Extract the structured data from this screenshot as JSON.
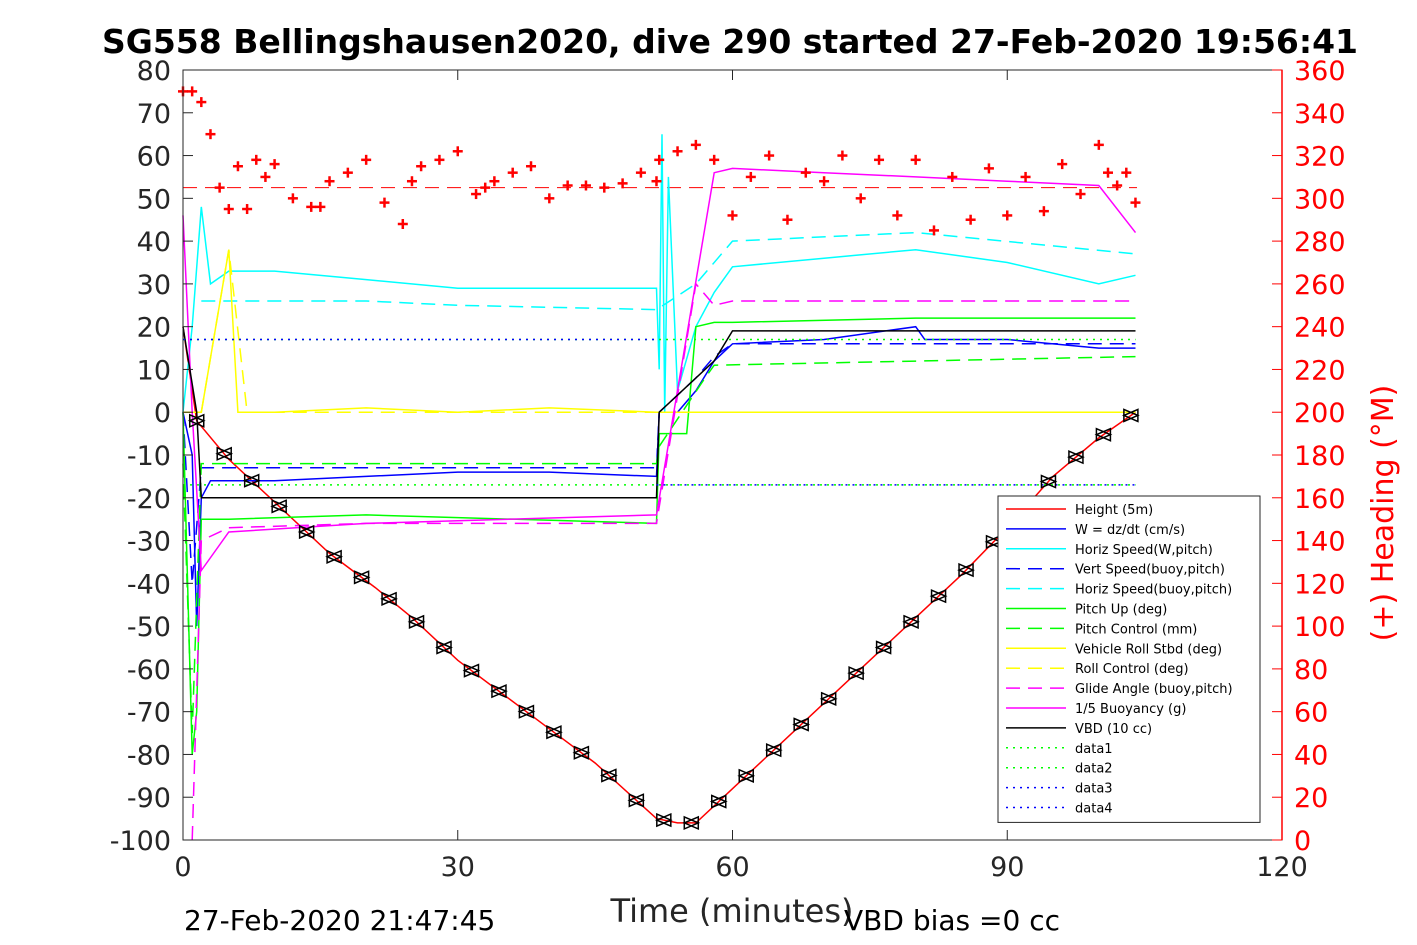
{
  "chart_data": {
    "type": "line",
    "title": "SG558 Bellingshausen2020, dive 290 started 27-Feb-2020 19:56:41",
    "xlabel": "Time (minutes)",
    "ylabel_left": "",
    "ylabel_right": "(+) Heading (°M)",
    "xlim": [
      0,
      120
    ],
    "ylim_left": [
      -100,
      80
    ],
    "ylim_right": [
      0,
      360
    ],
    "x_ticks": [
      "0",
      "30",
      "60",
      "90",
      "120"
    ],
    "y_ticks_left": [
      "80",
      "70",
      "60",
      "50",
      "40",
      "30",
      "20",
      "10",
      "0",
      "-10",
      "-20",
      "-30",
      "-40",
      "-50",
      "-60",
      "-70",
      "-80",
      "-90",
      "-100"
    ],
    "y_ticks_right": [
      "360",
      "340",
      "320",
      "300",
      "280",
      "260",
      "240",
      "220",
      "200",
      "180",
      "160",
      "140",
      "120",
      "100",
      "80",
      "60",
      "40",
      "20",
      "0"
    ],
    "footer_left": "27-Feb-2020 21:47:45",
    "footer_right": "VBD bias =0 cc",
    "grid": false,
    "legend_position": "bottom-right",
    "legend": [
      {
        "label": "Height (5m)",
        "color": "#ff0000",
        "style": "solid"
      },
      {
        "label": "W = dz/dt (cm/s)",
        "color": "#0000ff",
        "style": "solid"
      },
      {
        "label": "Horiz Speed(W,pitch)",
        "color": "#00ffff",
        "style": "solid"
      },
      {
        "label": "Vert Speed(buoy,pitch)",
        "color": "#0000ff",
        "style": "dashed"
      },
      {
        "label": "Horiz Speed(buoy,pitch)",
        "color": "#00ffff",
        "style": "dashed"
      },
      {
        "label": "Pitch Up (deg)",
        "color": "#00ff00",
        "style": "solid"
      },
      {
        "label": "Pitch Control (mm)",
        "color": "#00ff00",
        "style": "dashed"
      },
      {
        "label": "Vehicle Roll Stbd (deg)",
        "color": "#ffff00",
        "style": "solid"
      },
      {
        "label": "Roll Control (deg)",
        "color": "#ffff00",
        "style": "dashed"
      },
      {
        "label": "Glide Angle (buoy,pitch)",
        "color": "#ff00ff",
        "style": "dashed"
      },
      {
        "label": "1/5 Buoyancy (g)",
        "color": "#ff00ff",
        "style": "solid"
      },
      {
        "label": "VBD (10 cc)",
        "color": "#000000",
        "style": "solid"
      },
      {
        "label": "data1",
        "color": "#00ff00",
        "style": "dotted"
      },
      {
        "label": "data2",
        "color": "#00ff00",
        "style": "dotted"
      },
      {
        "label": "data3",
        "color": "#0000ff",
        "style": "dotted"
      },
      {
        "label": "data4",
        "color": "#0000ff",
        "style": "dotted"
      }
    ],
    "series": [
      {
        "name": "Height (5m)",
        "color": "#ff0000",
        "style": "solid",
        "x": [
          0,
          1.5,
          5,
          10,
          16,
          21,
          25,
          30,
          35,
          40,
          45,
          51.7,
          54,
          56,
          58,
          62,
          66,
          70,
          75,
          80,
          85,
          90,
          95,
          100,
          104
        ],
        "y": [
          20,
          -2,
          -11,
          -21,
          -33,
          -41,
          -48,
          -58,
          -66,
          -74,
          -82,
          -95,
          -96,
          -96,
          -92,
          -84,
          -76,
          -68,
          -58,
          -48,
          -38,
          -27,
          -15,
          -6,
          0
        ]
      },
      {
        "name": "W = dz/dt (cm/s)",
        "color": "#0000ff",
        "style": "solid",
        "x": [
          0,
          1,
          1.5,
          2,
          3,
          6,
          10,
          20,
          30,
          40,
          51.7,
          52,
          54,
          56,
          58,
          60,
          70,
          80,
          81,
          90,
          100,
          104
        ],
        "y": [
          0,
          -10,
          -50,
          -20,
          -16,
          -16,
          -16,
          -15,
          -14,
          -14,
          -15,
          0,
          0,
          5,
          12,
          16,
          17,
          20,
          17,
          17,
          15,
          15
        ]
      },
      {
        "name": "Horiz Speed(W,pitch)",
        "color": "#00ffff",
        "style": "solid",
        "x": [
          0,
          1,
          2,
          3,
          5,
          10,
          20,
          30,
          40,
          51.7,
          52,
          52.3,
          52.6,
          53,
          54,
          56,
          58,
          60,
          70,
          80,
          90,
          100,
          104
        ],
        "y": [
          0,
          20,
          48,
          30,
          33,
          33,
          31,
          29,
          29,
          29,
          10,
          65,
          0,
          55,
          5,
          20,
          28,
          34,
          36,
          38,
          35,
          30,
          32
        ]
      },
      {
        "name": "Vert Speed(buoy,pitch)",
        "color": "#0000ff",
        "style": "dashed",
        "x": [
          0,
          1,
          2,
          5,
          51.7,
          52,
          56,
          58,
          60,
          104
        ],
        "y": [
          0,
          -40,
          -13,
          -13,
          -13,
          0,
          8,
          13,
          16,
          16
        ]
      },
      {
        "name": "Horiz Speed(buoy,pitch)",
        "color": "#00ffff",
        "style": "dashed",
        "x": [
          2,
          5,
          20,
          30,
          51.7,
          56,
          60,
          80,
          104
        ],
        "y": [
          26,
          26,
          26,
          25,
          24,
          30,
          40,
          42,
          37
        ]
      },
      {
        "name": "Pitch Up (deg)",
        "color": "#00ff00",
        "style": "solid",
        "x": [
          0,
          1,
          1.5,
          2,
          5,
          20,
          51.7,
          52,
          55,
          56,
          58,
          60,
          80,
          104
        ],
        "y": [
          0,
          -80,
          -70,
          -25,
          -25,
          -24,
          -26,
          -5,
          -5,
          20,
          21,
          21,
          22,
          22
        ]
      },
      {
        "name": "Pitch Control (mm)",
        "color": "#00ff00",
        "style": "dashed",
        "x": [
          0,
          1,
          2,
          51.7,
          52,
          57,
          58,
          104
        ],
        "y": [
          -12,
          -75,
          -12,
          -12,
          -8,
          8,
          11,
          13
        ]
      },
      {
        "name": "Vehicle Roll Stbd (deg)",
        "color": "#ffff00",
        "style": "solid",
        "x": [
          0,
          2,
          5,
          6,
          7,
          10,
          20,
          30,
          40,
          51.7,
          55,
          60,
          70,
          80,
          90,
          100,
          104
        ],
        "y": [
          0,
          0,
          38,
          0,
          0,
          0,
          1,
          0,
          1,
          0,
          0,
          0,
          0,
          0,
          0,
          0,
          0
        ]
      },
      {
        "name": "Roll Control (deg)",
        "color": "#ffff00",
        "style": "dashed",
        "x": [
          2,
          5,
          7,
          20,
          40,
          51.7,
          58,
          70,
          80,
          104
        ],
        "y": [
          0,
          38,
          0,
          0,
          0,
          0,
          0,
          0,
          0,
          0
        ]
      },
      {
        "name": "Glide Angle (buoy,pitch)",
        "color": "#ff00ff",
        "style": "dashed",
        "x": [
          1,
          2,
          5,
          20,
          51.7,
          56,
          58,
          60,
          80,
          104
        ],
        "y": [
          -100,
          -30,
          -27,
          -26,
          -26,
          30,
          25,
          26,
          26,
          26
        ]
      },
      {
        "name": "1/5 Buoyancy (g)",
        "color": "#ff00ff",
        "style": "solid",
        "x": [
          0,
          1,
          2,
          5,
          20,
          51.7,
          58,
          60,
          70,
          80,
          90,
          100,
          104
        ],
        "y": [
          46,
          0,
          -37,
          -28,
          -26,
          -24,
          56,
          57,
          56,
          55,
          54,
          53,
          42
        ]
      },
      {
        "name": "VBD (10 cc)",
        "color": "#000000",
        "style": "solid",
        "x": [
          0,
          1.5,
          2,
          51.7,
          52,
          58,
          60,
          104
        ],
        "y": [
          20,
          0,
          -20,
          -20,
          0,
          12,
          19,
          19
        ]
      },
      {
        "name": "data1",
        "color": "#00ff00",
        "style": "dotted",
        "x": [
          0,
          104
        ],
        "y": [
          17,
          17
        ]
      },
      {
        "name": "data2",
        "color": "#00ff00",
        "style": "dotted",
        "x": [
          0,
          104
        ],
        "y": [
          -17,
          -17
        ]
      },
      {
        "name": "data3",
        "color": "#0000ff",
        "style": "dotted",
        "x": [
          0,
          51.7
        ],
        "y": [
          17,
          17
        ]
      },
      {
        "name": "data4",
        "color": "#0000ff",
        "style": "dotted",
        "x": [
          51.7,
          104
        ],
        "y": [
          -17,
          -17
        ]
      }
    ],
    "heading": {
      "name": "Heading",
      "color": "#ff0000",
      "marker": "+",
      "axis": "right",
      "x": [
        0,
        1,
        2,
        3,
        4,
        5,
        6,
        7,
        8,
        9,
        10,
        12,
        14,
        15,
        16,
        18,
        20,
        22,
        24,
        25,
        26,
        28,
        30,
        32,
        33,
        34,
        36,
        38,
        40,
        42,
        44,
        46,
        48,
        50,
        51.7,
        52,
        54,
        56,
        58,
        60,
        62,
        64,
        66,
        68,
        70,
        72,
        74,
        76,
        78,
        80,
        82,
        84,
        86,
        88,
        90,
        92,
        94,
        96,
        98,
        100,
        101,
        102,
        103,
        104
      ],
      "y": [
        350,
        350,
        345,
        330,
        305,
        295,
        315,
        295,
        318,
        310,
        316,
        300,
        296,
        296,
        308,
        312,
        318,
        298,
        288,
        308,
        315,
        318,
        322,
        302,
        305,
        308,
        312,
        315,
        300,
        306,
        306,
        305,
        307,
        312,
        308,
        318,
        322,
        325,
        318,
        292,
        310,
        320,
        290,
        312,
        308,
        320,
        300,
        318,
        292,
        318,
        285,
        310,
        290,
        314,
        292,
        310,
        294,
        316,
        302,
        325,
        312,
        306,
        312,
        298
      ]
    }
  }
}
